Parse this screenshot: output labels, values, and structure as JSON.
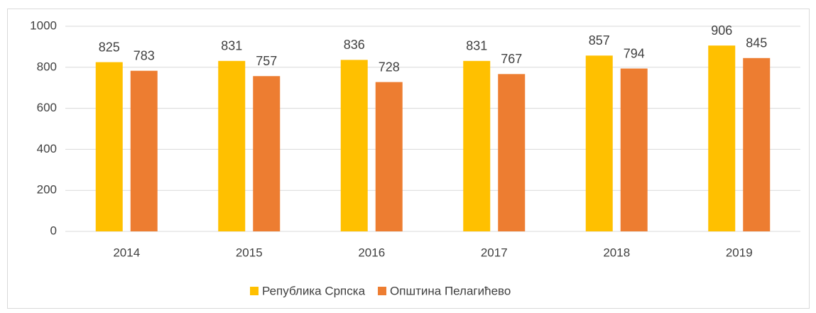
{
  "chart_data": {
    "type": "bar",
    "categories": [
      "2014",
      "2015",
      "2016",
      "2017",
      "2018",
      "2019"
    ],
    "series": [
      {
        "name": "Република Српска",
        "color": "#ffc000",
        "values": [
          825,
          831,
          836,
          831,
          857,
          906
        ]
      },
      {
        "name": "Општина Пелагићево",
        "color": "#ed7d31",
        "values": [
          783,
          757,
          728,
          767,
          794,
          845
        ]
      }
    ],
    "ylim": [
      0,
      1000
    ],
    "yticks": [
      0,
      200,
      400,
      600,
      800,
      1000
    ],
    "grid": true,
    "legend": "bottom"
  }
}
